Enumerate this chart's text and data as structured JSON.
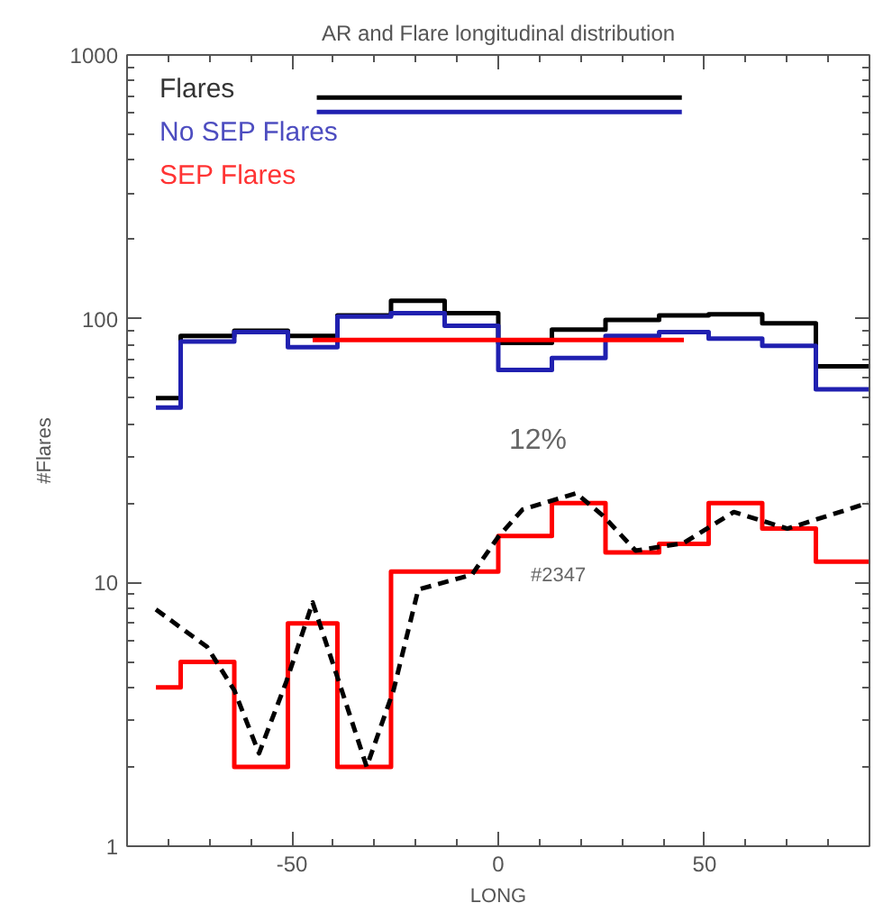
{
  "chart_data": {
    "type": "step",
    "title": "AR and Flare longitudinal distribution",
    "xlabel": "LONG",
    "ylabel": "#Flares",
    "log": "y",
    "xlim": [
      -90,
      90
    ],
    "ylim": [
      1,
      1000
    ],
    "xticks": [
      -50,
      0,
      50
    ],
    "yticks": [
      1,
      10,
      100,
      1000
    ],
    "grid": false,
    "legend": "top left",
    "series": [
      {
        "name": "Flares",
        "color": "#000000",
        "x": [
          -83,
          -77,
          -64,
          -51,
          -39,
          -26,
          -13,
          0,
          13,
          26,
          39,
          51,
          64,
          77,
          90
        ],
        "values": [
          50,
          86,
          90,
          86,
          103,
          117,
          105,
          81,
          91,
          99,
          103,
          104,
          96,
          66,
          66
        ]
      },
      {
        "name": "No SEP Flares",
        "color": "#2020b0",
        "x": [
          -83,
          -77,
          -64,
          -51,
          -39,
          -26,
          -13,
          0,
          13,
          26,
          39,
          51,
          64,
          77,
          90
        ],
        "values": [
          46,
          82,
          89,
          78,
          102,
          105,
          94,
          64,
          71,
          86,
          89,
          84,
          79,
          54,
          54
        ]
      },
      {
        "name": "SEP Flares",
        "color": "#ff0000",
        "x": [
          -83,
          -77,
          -64,
          -51,
          -39,
          -26,
          -13,
          0,
          13,
          26,
          39,
          51,
          64,
          77,
          90
        ],
        "values": [
          4,
          5,
          2,
          7,
          2,
          11,
          11,
          15,
          20,
          13,
          14,
          20,
          16,
          12,
          12
        ]
      },
      {
        "color": "#ff0000",
        "type": "line",
        "x": [
          -45,
          45
        ],
        "values": [
          83,
          83
        ]
      },
      {
        "color": "#000000",
        "type": "line",
        "x": [
          -44,
          44.5
        ],
        "values": [
          690,
          690
        ]
      },
      {
        "color": "#2020b0",
        "type": "line",
        "x": [
          -44,
          44.5
        ],
        "values": [
          608,
          608
        ]
      },
      {
        "color": "#000000",
        "type": "line",
        "line_style": "dashed",
        "x": [
          -83,
          -70.6,
          -64,
          -58,
          -51.4,
          -45,
          -38.4,
          -31.9,
          -25.4,
          -19.4,
          -6.4,
          0,
          5.9,
          18.9,
          25.4,
          33.3,
          44.9,
          57.1,
          70.1,
          89.6
        ],
        "values": [
          7.9,
          5.7,
          3.9,
          2.25,
          4.2,
          8.4,
          4.1,
          2.0,
          3.9,
          9.4,
          10.7,
          14.9,
          18.9,
          21.8,
          17.9,
          13.2,
          14.1,
          18.5,
          16,
          20
        ]
      }
    ],
    "annotations": [
      "12%",
      "#2347"
    ]
  }
}
